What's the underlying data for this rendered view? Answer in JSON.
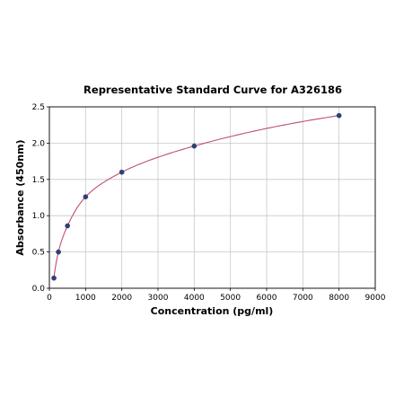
{
  "chart_data": {
    "type": "scatter",
    "title": "Representative Standard Curve for A326186",
    "xlabel": "Concentration (pg/ml)",
    "ylabel": "Absorbance (450nm)",
    "xlim": [
      0,
      9000
    ],
    "ylim": [
      0,
      2.5
    ],
    "xticks": [
      "0",
      "1000",
      "2000",
      "3000",
      "4000",
      "5000",
      "6000",
      "7000",
      "8000",
      "9000"
    ],
    "yticks": [
      "0.0",
      "0.5",
      "1.0",
      "1.5",
      "2.0",
      "2.5"
    ],
    "grid": true,
    "series": [
      {
        "x": [
          125,
          250,
          500,
          1000,
          2000,
          4000,
          8000
        ],
        "y": [
          0.14,
          0.5,
          0.86,
          1.26,
          1.6,
          1.96,
          2.38
        ]
      }
    ],
    "fit_curve": true,
    "colors": {
      "curve": "#c0506e",
      "points": "#2e3f7a"
    }
  }
}
